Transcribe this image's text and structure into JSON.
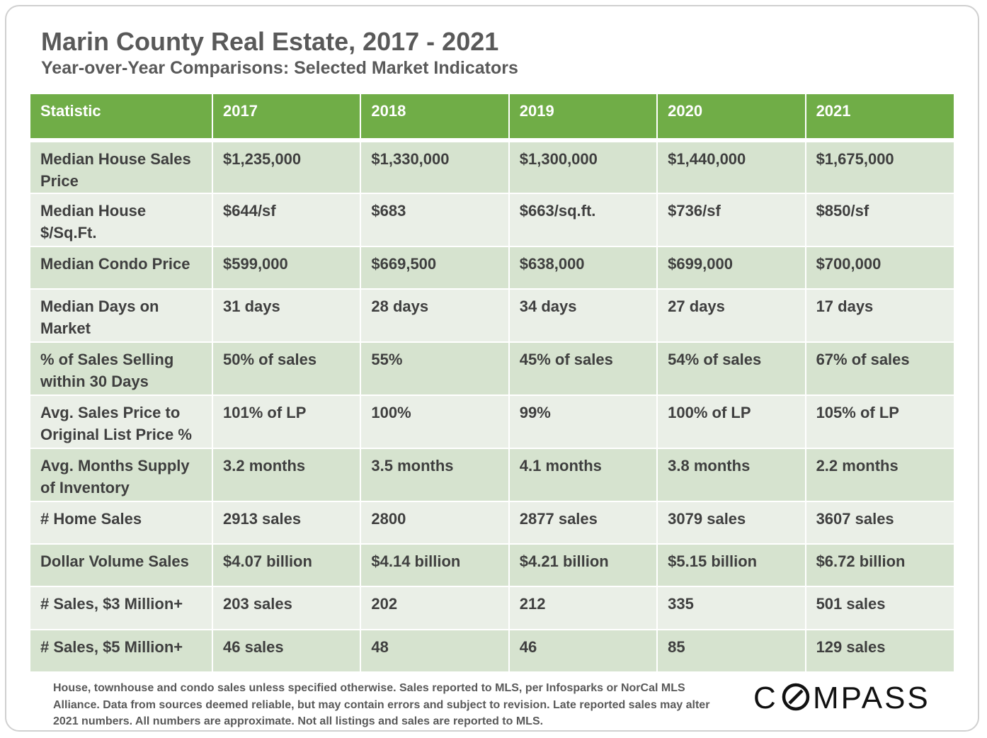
{
  "title": "Marin County Real Estate, 2017 - 2021",
  "subtitle": "Year-over-Year Comparisons: Selected Market Indicators",
  "chart_data": {
    "type": "table",
    "columns": [
      "Statistic",
      "2017",
      "2018",
      "2019",
      "2020",
      "2021"
    ],
    "rows": [
      [
        "Median House Sales Price",
        "$1,235,000",
        "$1,330,000",
        "$1,300,000",
        "$1,440,000",
        "$1,675,000"
      ],
      [
        "Median House $/Sq.Ft.",
        "$644/sf",
        "$683",
        "$663/sq.ft.",
        "$736/sf",
        "$850/sf"
      ],
      [
        "Median Condo Price",
        "$599,000",
        "$669,500",
        "$638,000",
        "$699,000",
        "$700,000"
      ],
      [
        "Median Days on Market",
        "31 days",
        "28 days",
        "34 days",
        "27 days",
        "17 days"
      ],
      [
        "% of Sales Selling within 30 Days",
        "50% of sales",
        "55%",
        "45% of sales",
        "54% of sales",
        "67% of sales"
      ],
      [
        "Avg. Sales Price to Original List Price %",
        "101% of LP",
        "100%",
        "99%",
        "100% of LP",
        "105% of LP"
      ],
      [
        "Avg. Months Supply of Inventory",
        "3.2 months",
        "3.5 months",
        "4.1 months",
        "3.8 months",
        "2.2 months"
      ],
      [
        "# Home Sales",
        "2913 sales",
        "2800",
        "2877 sales",
        "3079 sales",
        "3607 sales"
      ],
      [
        "Dollar Volume Sales",
        "$4.07 billion",
        "$4.14 billion",
        "$4.21 billion",
        "$5.15 billion",
        "$6.72 billion"
      ],
      [
        "# Sales, $3 Million+",
        "203 sales",
        "202",
        "212",
        "335",
        "501 sales"
      ],
      [
        "# Sales, $5 Million+",
        "46 sales",
        "48",
        "46",
        "85",
        "129 sales"
      ]
    ]
  },
  "footnote": "House, townhouse and condo sales unless specified otherwise. Sales reported to MLS, per Infosparks or NorCal MLS Alliance. Data from sources deemed reliable, but may contain errors and subject to revision. Late reported sales may alter 2021 numbers. All numbers are approximate. Not all listings and sales are reported to MLS.",
  "logo": {
    "pre": "C",
    "post": "MPASS",
    "icon": "compass-o-icon"
  },
  "colors": {
    "header": "#70ad47",
    "row_odd": "#d6e3cf",
    "row_even": "#eaefe7",
    "text": "#3f3f3f",
    "title": "#595959"
  }
}
